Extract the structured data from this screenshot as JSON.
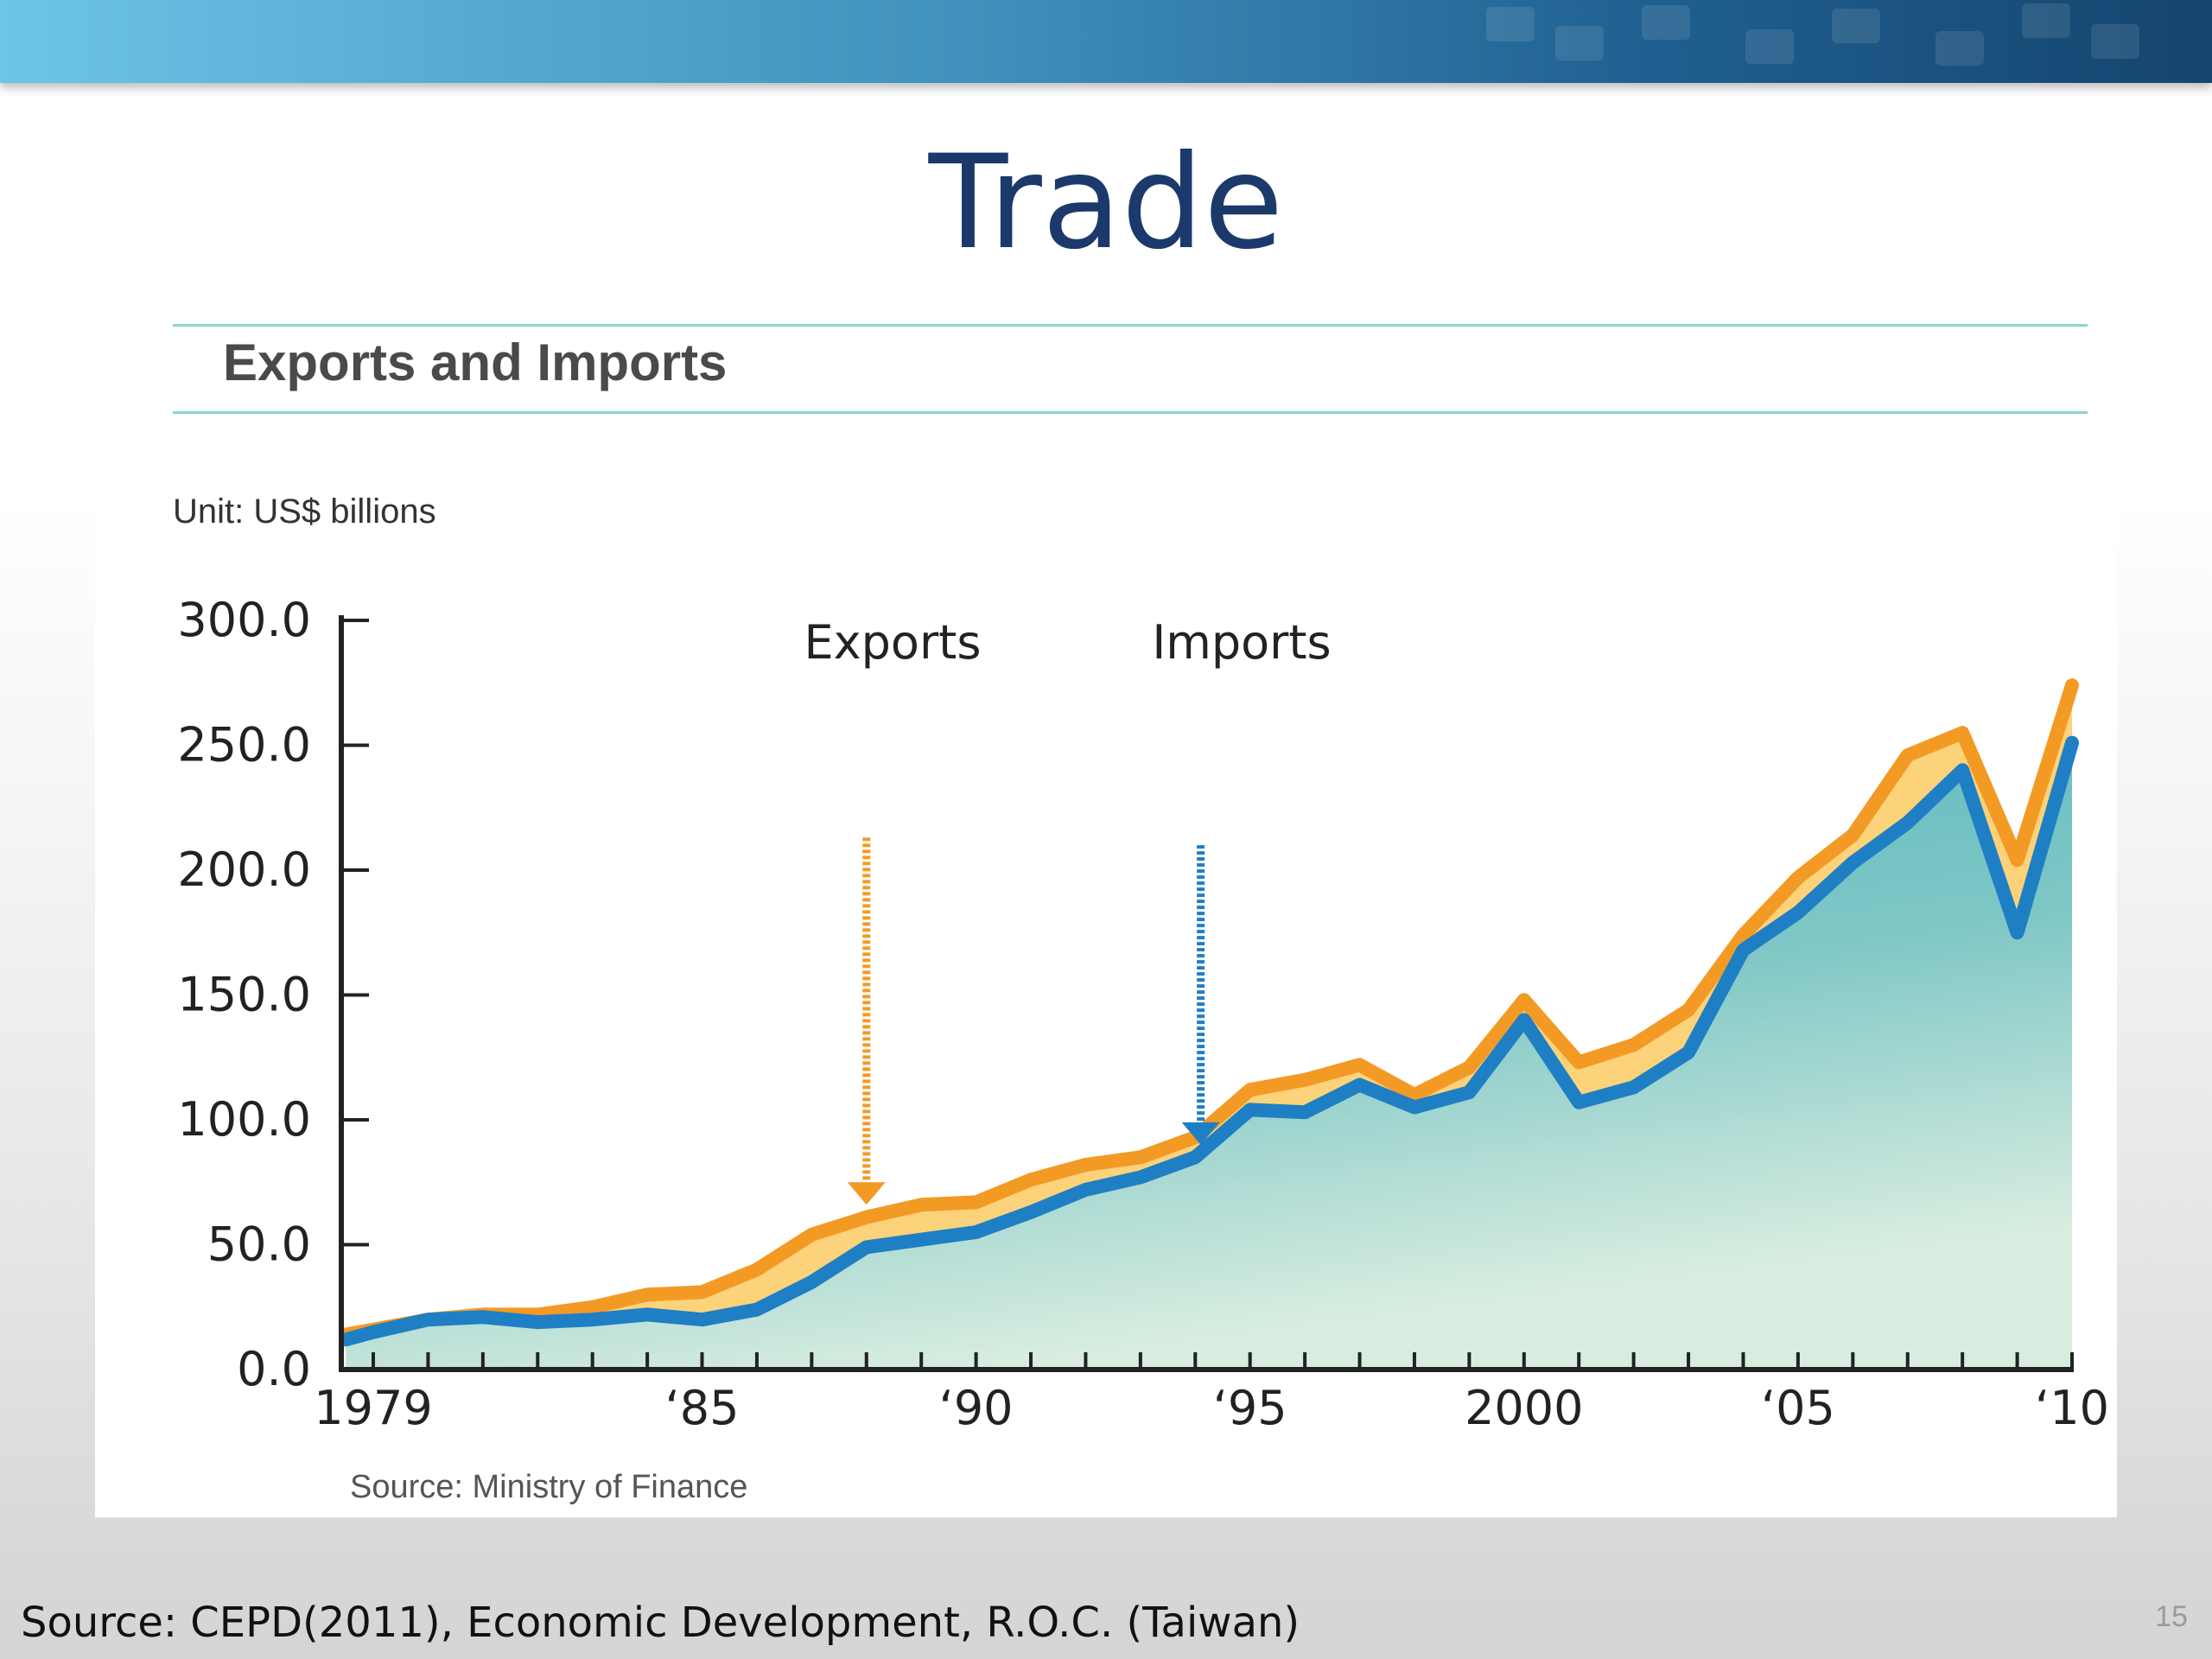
{
  "slide": {
    "title": "Trade",
    "page_number": "15",
    "footer_source": "Source: CEPD(2011), Economic Development, R.O.C. (Taiwan)"
  },
  "chart_data": {
    "type": "area",
    "title": "Exports and Imports",
    "unit": "Unit: US$ billions",
    "source": "Source: Ministry of Finance",
    "ylim": [
      0,
      300
    ],
    "xlim": [
      1978.5,
      2010
    ],
    "y_ticks": [
      0,
      50,
      100,
      150,
      200,
      250,
      300
    ],
    "y_tick_labels": [
      "0.0",
      "50.0",
      "100.0",
      "150.0",
      "200.0",
      "250.0",
      "300.0"
    ],
    "x_tick_labels": [
      {
        "x": 1979,
        "label": "1979"
      },
      {
        "x": 1985,
        "label": "‘85"
      },
      {
        "x": 1990,
        "label": "‘90"
      },
      {
        "x": 1995,
        "label": "‘95"
      },
      {
        "x": 2000,
        "label": "2000"
      },
      {
        "x": 2005,
        "label": "‘05"
      },
      {
        "x": 2010,
        "label": "‘10"
      }
    ],
    "grid": false,
    "series": [
      {
        "name": "Exports",
        "color": "#f39a25",
        "fill": "#fcd27b",
        "x": [
          1978.5,
          1979,
          1980,
          1981,
          1982,
          1983,
          1984,
          1985,
          1986,
          1987,
          1988,
          1989,
          1990,
          1991,
          1992,
          1993,
          1994,
          1995,
          1996,
          1997,
          1998,
          1999,
          2000,
          2001,
          2002,
          2003,
          2004,
          2005,
          2006,
          2007,
          2008,
          2009,
          2010
        ],
        "values": [
          14,
          16,
          20,
          22,
          22,
          25,
          30,
          31,
          40,
          54,
          61,
          66,
          67,
          76,
          82,
          85,
          93,
          112,
          116,
          122,
          110,
          121,
          148,
          123,
          130,
          144,
          174,
          197,
          214,
          246,
          255,
          204,
          274
        ]
      },
      {
        "name": "Imports",
        "color": "#1f7fc4",
        "fill": "#5fb8bf",
        "x": [
          1978.5,
          1979,
          1980,
          1981,
          1982,
          1983,
          1984,
          1985,
          1986,
          1987,
          1988,
          1989,
          1990,
          1991,
          1992,
          1993,
          1994,
          1995,
          1996,
          1997,
          1998,
          1999,
          2000,
          2001,
          2002,
          2003,
          2004,
          2005,
          2006,
          2007,
          2008,
          2009,
          2010
        ],
        "values": [
          12,
          15,
          20,
          21,
          19,
          20,
          22,
          20,
          24,
          35,
          49,
          52,
          55,
          63,
          72,
          77,
          85,
          104,
          103,
          114,
          105,
          111,
          140,
          107,
          113,
          127,
          168,
          183,
          203,
          219,
          240,
          175,
          251
        ]
      }
    ],
    "annotations": [
      {
        "label": "Exports",
        "arrow_x": 1988,
        "arrow_top": 213,
        "arrow_tip": 66,
        "color": "#f39a25"
      },
      {
        "label": "Imports",
        "arrow_x": 1994.1,
        "arrow_top": 210,
        "arrow_tip": 90,
        "color": "#1f7fc4"
      }
    ]
  }
}
